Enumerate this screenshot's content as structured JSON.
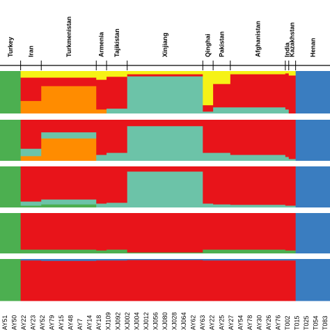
{
  "chart_data": {
    "type": "structure_barplot",
    "colors": {
      "green": "#4caf50",
      "orange": "#ff8c00",
      "red": "#e8141a",
      "teal": "#6cc3a8",
      "blue": "#3a7dc0",
      "yellow": "#f6f216"
    },
    "groups": [
      {
        "name": "Turkey",
        "n": 6,
        "profiles": [
          {
            "green": 1
          },
          {
            "green": 1
          },
          {
            "green": 1
          },
          {
            "green": 1
          },
          {
            "green": 1
          }
        ]
      },
      {
        "name": "Iran",
        "n": 6,
        "profiles": [
          {
            "red": 0.55,
            "orange": 0.3,
            "yellow": 0.15
          },
          {
            "red": 0.7,
            "orange": 0.12,
            "teal": 0.18
          },
          {
            "red": 0.85,
            "teal": 0.1,
            "green": 0.05
          },
          {
            "red": 0.9,
            "green": 0.1
          },
          {
            "red": 0.97,
            "blue": 0.03
          }
        ]
      },
      {
        "name": "Turkmenistan",
        "n": 16,
        "profiles": [
          {
            "orange": 0.65,
            "red": 0.2,
            "yellow": 0.15
          },
          {
            "orange": 0.55,
            "red": 0.3,
            "teal": 0.15
          },
          {
            "red": 0.8,
            "teal": 0.12,
            "green": 0.08
          },
          {
            "red": 0.9,
            "green": 0.1
          },
          {
            "red": 0.96,
            "blue": 0.04
          }
        ]
      },
      {
        "name": "Armenia",
        "n": 3,
        "profiles": [
          {
            "red": 0.7,
            "yellow": 0.2,
            "orange": 0.1
          },
          {
            "red": 0.85,
            "teal": 0.15
          },
          {
            "red": 0.9,
            "teal": 0.1
          },
          {
            "red": 0.92,
            "green": 0.08
          },
          {
            "red": 0.97,
            "blue": 0.03
          }
        ]
      },
      {
        "name": "Tajikistan",
        "n": 6,
        "profiles": [
          {
            "red": 0.75,
            "teal": 0.12,
            "yellow": 0.13
          },
          {
            "red": 0.8,
            "teal": 0.2
          },
          {
            "red": 0.88,
            "teal": 0.12
          },
          {
            "red": 0.9,
            "green": 0.1
          },
          {
            "red": 0.97,
            "blue": 0.03
          }
        ]
      },
      {
        "name": "Xinjiang",
        "n": 22,
        "profiles": [
          {
            "teal": 0.88,
            "red": 0.05,
            "yellow": 0.07
          },
          {
            "teal": 0.85,
            "red": 0.15
          },
          {
            "teal": 0.88,
            "red": 0.12
          },
          {
            "red": 0.97,
            "green": 0.03
          },
          {
            "red": 0.98,
            "blue": 0.02
          }
        ]
      },
      {
        "name": "Qinghai",
        "n": 3,
        "profiles": [
          {
            "red": 0.15,
            "teal": 0.05,
            "yellow": 0.8
          },
          {
            "red": 0.8,
            "teal": 0.2
          },
          {
            "red": 0.9,
            "teal": 0.1
          },
          {
            "red": 0.9,
            "green": 0.1
          },
          {
            "red": 0.97,
            "blue": 0.03
          }
        ]
      },
      {
        "name": "Pakistan",
        "n": 5,
        "profiles": [
          {
            "red": 0.55,
            "yellow": 0.3,
            "teal": 0.15
          },
          {
            "red": 0.8,
            "teal": 0.2
          },
          {
            "red": 0.92,
            "teal": 0.08
          },
          {
            "red": 0.9,
            "green": 0.1
          },
          {
            "red": 0.97,
            "blue": 0.03
          }
        ]
      },
      {
        "name": "Afghanistan",
        "n": 16,
        "profiles": [
          {
            "red": 0.78,
            "teal": 0.15,
            "yellow": 0.07
          },
          {
            "red": 0.85,
            "teal": 0.15
          },
          {
            "red": 0.93,
            "teal": 0.07
          },
          {
            "red": 0.9,
            "green": 0.1
          },
          {
            "red": 0.97,
            "blue": 0.03
          }
        ]
      },
      {
        "name": "India",
        "n": 1,
        "profiles": [
          {
            "red": 0.85,
            "teal": 0.1,
            "yellow": 0.05
          },
          {
            "red": 0.9,
            "teal": 0.1
          },
          {
            "red": 0.95,
            "teal": 0.05
          },
          {
            "red": 0.92,
            "green": 0.08
          },
          {
            "red": 0.97,
            "blue": 0.03
          }
        ]
      },
      {
        "name": "Kazakhstan",
        "n": 2,
        "profiles": [
          {
            "red": 0.9,
            "yellow": 0.1
          },
          {
            "red": 0.95,
            "teal": 0.05
          },
          {
            "red": 0.95,
            "teal": 0.05
          },
          {
            "red": 0.92,
            "green": 0.08
          },
          {
            "red": 0.97,
            "blue": 0.03
          }
        ]
      },
      {
        "name": "Henan",
        "n": 10,
        "profiles": [
          {
            "blue": 1
          },
          {
            "blue": 1
          },
          {
            "blue": 1
          },
          {
            "blue": 1
          },
          {
            "blue": 1
          }
        ]
      }
    ],
    "sample_labels": [
      "AY51",
      "AY50",
      "AY22",
      "AY23",
      "AY52",
      "AY79",
      "AY15",
      "AY48",
      "AY7",
      "AY14",
      "AY18",
      "XJ109",
      "XJ092",
      "XJ002",
      "XJ004",
      "XJ012",
      "XJ056",
      "XJ080",
      "XJ028",
      "XJ064",
      "AY62",
      "AY63",
      "AY22",
      "AY25",
      "AY27",
      "AY54",
      "AY78",
      "AY30",
      "AY26",
      "AY76",
      "T002",
      "T015",
      "T025",
      "T054",
      "T083"
    ]
  }
}
